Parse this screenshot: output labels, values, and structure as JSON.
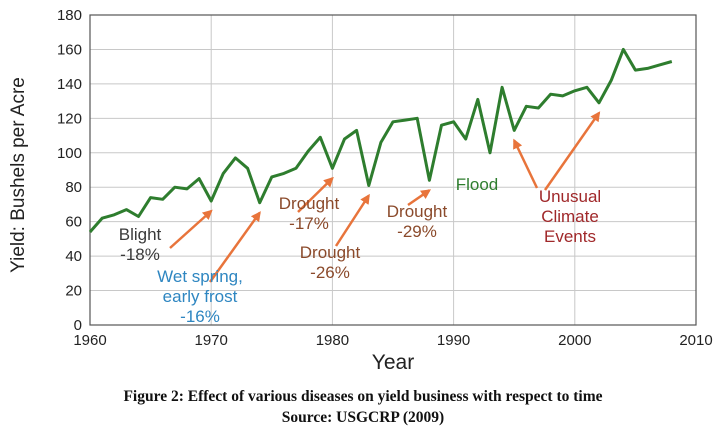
{
  "chart_data": {
    "type": "line",
    "xlabel": "Year",
    "ylabel": "Yield: Bushels per Acre",
    "xlim": [
      1960,
      2010
    ],
    "ylim": [
      0,
      180
    ],
    "x_ticks": [
      1960,
      1970,
      1980,
      1990,
      2000,
      2010
    ],
    "y_ticks": [
      0,
      20,
      40,
      60,
      80,
      100,
      120,
      140,
      160,
      180
    ],
    "grid": true,
    "line_color": "#2e7d2e",
    "series": [
      {
        "x": [
          1960,
          1961,
          1962,
          1963,
          1964,
          1965,
          1966,
          1967,
          1968,
          1969,
          1970,
          1971,
          1972,
          1973,
          1974,
          1975,
          1976,
          1977,
          1978,
          1979,
          1980,
          1981,
          1982,
          1983,
          1984,
          1985,
          1986,
          1987,
          1988,
          1989,
          1990,
          1991,
          1992,
          1993,
          1994,
          1995,
          1996,
          1997,
          1998,
          1999,
          2000,
          2001,
          2002,
          2003,
          2004,
          2005,
          2006,
          2007,
          2008
        ],
        "y": [
          54,
          62,
          64,
          67,
          63,
          74,
          73,
          80,
          79,
          85,
          72,
          88,
          97,
          91,
          71,
          86,
          88,
          91,
          101,
          109,
          91,
          108,
          113,
          81,
          106,
          118,
          119,
          120,
          84,
          116,
          118,
          108,
          131,
          100,
          138,
          113,
          127,
          126,
          134,
          133,
          136,
          138,
          129,
          142,
          160,
          148,
          149,
          151,
          153
        ]
      }
    ],
    "annotations": [
      {
        "lines": [
          "Blight",
          "-18%"
        ],
        "color": "#3a3a3a",
        "x": 1970,
        "y": 72
      },
      {
        "lines": [
          "Wet spring,",
          "early frost",
          "-16%"
        ],
        "color": "#2e86c1",
        "x": 1974,
        "y": 71
      },
      {
        "lines": [
          "Drought",
          "-17%"
        ],
        "color": "#8b4a2b",
        "x": 1980,
        "y": 91
      },
      {
        "lines": [
          "Drought",
          "-26%"
        ],
        "color": "#8b4a2b",
        "x": 1983,
        "y": 81
      },
      {
        "lines": [
          "Drought",
          "-29%"
        ],
        "color": "#8b4a2b",
        "x": 1988,
        "y": 84
      },
      {
        "lines": [
          "Flood"
        ],
        "color": "#2e7d2e",
        "x": 1993,
        "y": 100
      },
      {
        "lines": [
          "Unusual",
          "Climate",
          "Events"
        ],
        "color": "#a0282a",
        "x": 1995,
        "y": 113
      },
      {
        "lines": [],
        "color": "#a0282a",
        "x": 2002,
        "y": 129
      }
    ],
    "arrow_color": "#e8743b"
  },
  "caption": {
    "line1": "Figure 2: Effect of various diseases on yield business with respect to time",
    "line2": "Source: USGCRP (2009)"
  }
}
